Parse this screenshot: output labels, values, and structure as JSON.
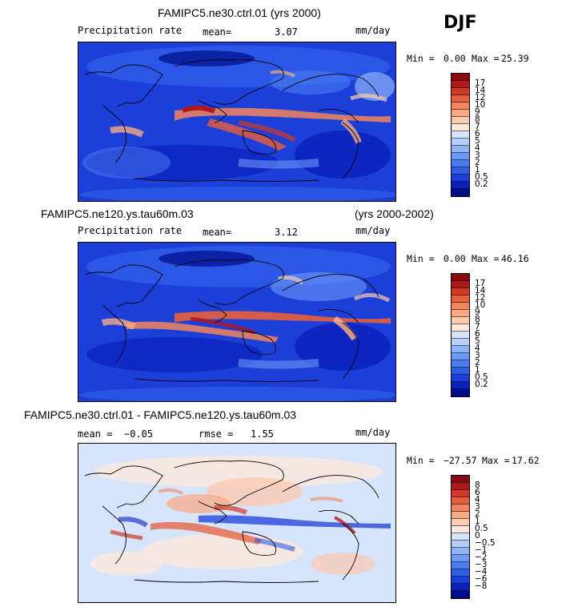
{
  "season": "DJF",
  "colors": {
    "precip": [
      "#000c8a",
      "#0a21bd",
      "#1b3fd8",
      "#2e5ee8",
      "#4a7bf1",
      "#6c98f6",
      "#8fb3f9",
      "#b5cefb",
      "#d6e4fc",
      "#fde8dc",
      "#fccbb0",
      "#f9a983",
      "#f3855c",
      "#e85f3c",
      "#d13a24",
      "#b0181a",
      "#8a0a12"
    ],
    "diff": [
      "#000c8a",
      "#0a21bd",
      "#1b3fd8",
      "#2e5ee8",
      "#4a7bf1",
      "#6c98f6",
      "#8fb3f9",
      "#b5cefb",
      "#d6e4fc",
      "#fde8dc",
      "#fccbb0",
      "#f9a983",
      "#f3855c",
      "#e85f3c",
      "#d13a24",
      "#b0181a",
      "#8a0a12"
    ]
  },
  "panels": [
    {
      "id": "p1",
      "title": "FAMIPC5.ne30.ctrl.01 (yrs 2000)",
      "title_right": "",
      "left_label": "Precipitation rate",
      "mean_label": "mean=",
      "mean_value": "3.07",
      "rmse_label": "",
      "rmse_value": "",
      "units": "mm/day",
      "min_label": "Min =",
      "min_value": "0.00",
      "max_label": "Max =",
      "max_value": "25.39",
      "colorbar_labels": [
        "17",
        "14",
        "12",
        "10",
        "9",
        "8",
        "7",
        "6",
        "5",
        "4",
        "3",
        "2",
        "1",
        "0.5",
        "0.2"
      ]
    },
    {
      "id": "p2",
      "title": "FAMIPC5.ne120.ys.tau60m.03",
      "title_right": "(yrs 2000-2002)",
      "left_label": "Precipitation rate",
      "mean_label": "mean=",
      "mean_value": "3.12",
      "rmse_label": "",
      "rmse_value": "",
      "units": "mm/day",
      "min_label": "Min =",
      "min_value": "0.00",
      "max_label": "Max =",
      "max_value": "46.16",
      "colorbar_labels": [
        "17",
        "14",
        "12",
        "10",
        "9",
        "8",
        "7",
        "6",
        "5",
        "4",
        "3",
        "2",
        "1",
        "0.5",
        "0.2"
      ]
    },
    {
      "id": "p3",
      "title": "FAMIPC5.ne30.ctrl.01 - FAMIPC5.ne120.ys.tau60m.03",
      "title_right": "",
      "left_label": "",
      "mean_label": "mean =",
      "mean_value": "−0.05",
      "rmse_label": "rmse =",
      "rmse_value": "1.55",
      "units": "mm/day",
      "min_label": "Min =",
      "min_value": "−27.57",
      "max_label": "Max =",
      "max_value": "17.62",
      "colorbar_labels": [
        "8",
        "6",
        "4",
        "3",
        "2",
        "1",
        "0.5",
        "0",
        "−0.5",
        "−1",
        "−2",
        "−3",
        "−4",
        "−6",
        "−8"
      ]
    }
  ]
}
